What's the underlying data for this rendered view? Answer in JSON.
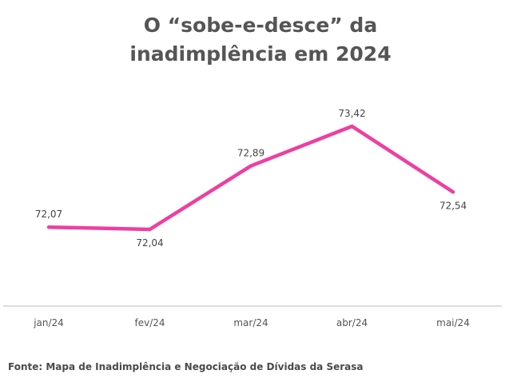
{
  "chart_data": {
    "type": "line",
    "title_lines": [
      "O “sobe-e-desce” da",
      "inadimplência em 2024"
    ],
    "categories": [
      "jan/24",
      "fev/24",
      "mar/24",
      "abr/24",
      "mai/24"
    ],
    "series": [
      {
        "values": [
          72.07,
          72.04,
          72.89,
          73.42,
          72.54
        ],
        "labels": [
          "72,07",
          "72,04",
          "72,89",
          "73,42",
          "72,54"
        ],
        "color": "#ee3fa0"
      }
    ],
    "xlabel": "",
    "ylabel": "",
    "grid": false,
    "legend": "none"
  },
  "source": "Fonte: Mapa de Inadimplência e Negociação de Dívidas da Serasa"
}
